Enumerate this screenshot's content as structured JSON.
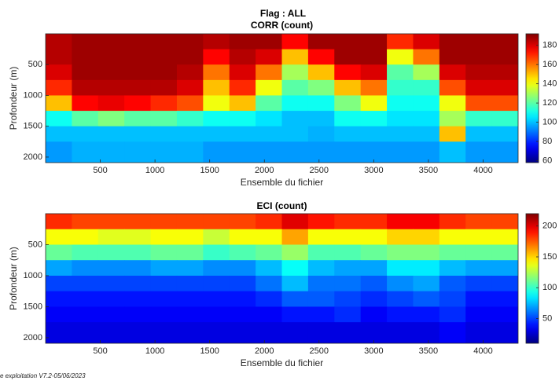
{
  "title": "Flag : ALL",
  "footer": "e exploitation V7.2-05/06/2023",
  "chart_data": [
    {
      "type": "heatmap",
      "title": "CORR (count)",
      "xlabel": "Ensemble du fichier",
      "ylabel": "Profondeur (m)",
      "xlim": [
        0,
        4320
      ],
      "ylim": [
        0,
        2090
      ],
      "y_reversed": true,
      "xticks": [
        500,
        1000,
        1500,
        2000,
        2500,
        3000,
        3500,
        4000
      ],
      "yticks": [
        500,
        1000,
        1500,
        2000
      ],
      "colormap": "jet",
      "clim": [
        58,
        192
      ],
      "cticks": [
        60,
        80,
        100,
        120,
        140,
        160,
        180
      ],
      "xbins": [
        0,
        240,
        480,
        720,
        960,
        1200,
        1440,
        1680,
        1920,
        2160,
        2400,
        2640,
        2880,
        3120,
        3360,
        3600,
        3840,
        4080,
        4320
      ],
      "ybins": [
        0,
        250,
        500,
        750,
        1000,
        1250,
        1500,
        1750,
        2090
      ],
      "z": [
        [
          185,
          188,
          188,
          188,
          188,
          188,
          185,
          188,
          188,
          175,
          188,
          188,
          188,
          170,
          180,
          188,
          188,
          188
        ],
        [
          185,
          188,
          188,
          188,
          188,
          188,
          175,
          185,
          180,
          150,
          175,
          188,
          188,
          140,
          160,
          188,
          188,
          188
        ],
        [
          180,
          188,
          188,
          188,
          188,
          185,
          160,
          180,
          160,
          130,
          150,
          175,
          180,
          120,
          130,
          180,
          185,
          185
        ],
        [
          170,
          185,
          185,
          185,
          185,
          180,
          150,
          170,
          140,
          120,
          125,
          150,
          160,
          115,
          115,
          165,
          180,
          180
        ],
        [
          150,
          175,
          178,
          175,
          170,
          165,
          140,
          150,
          120,
          110,
          110,
          125,
          140,
          110,
          110,
          140,
          165,
          165
        ],
        [
          110,
          120,
          125,
          120,
          120,
          115,
          110,
          110,
          105,
          100,
          100,
          110,
          110,
          105,
          105,
          130,
          115,
          115
        ],
        [
          100,
          100,
          100,
          100,
          100,
          100,
          100,
          100,
          100,
          100,
          98,
          100,
          100,
          100,
          100,
          150,
          100,
          100
        ],
        [
          95,
          98,
          98,
          98,
          98,
          98,
          95,
          95,
          95,
          95,
          95,
          95,
          95,
          95,
          95,
          100,
          95,
          95
        ]
      ]
    },
    {
      "type": "heatmap",
      "title": "ECI (count)",
      "xlabel": "Ensemble du fichier",
      "ylabel": "Profondeur (m)",
      "xlim": [
        0,
        4320
      ],
      "ylim": [
        0,
        2090
      ],
      "y_reversed": true,
      "xticks": [
        500,
        1000,
        1500,
        2000,
        2500,
        3000,
        3500,
        4000
      ],
      "yticks": [
        500,
        1000,
        1500,
        2000
      ],
      "colormap": "jet",
      "clim": [
        10,
        220
      ],
      "cticks": [
        50,
        100,
        150,
        200
      ],
      "xbins": [
        0,
        240,
        480,
        720,
        960,
        1200,
        1440,
        1680,
        1920,
        2160,
        2400,
        2640,
        2880,
        3120,
        3360,
        3600,
        3840,
        4080,
        4320
      ],
      "ybins": [
        0,
        250,
        500,
        750,
        1000,
        1250,
        1500,
        1750,
        2090
      ],
      "z": [
        [
          185,
          180,
          180,
          180,
          180,
          180,
          180,
          180,
          185,
          200,
          190,
          185,
          185,
          195,
          195,
          185,
          180,
          180
        ],
        [
          140,
          140,
          135,
          135,
          140,
          140,
          130,
          140,
          140,
          160,
          140,
          140,
          140,
          150,
          150,
          140,
          140,
          140
        ],
        [
          110,
          105,
          105,
          105,
          110,
          110,
          100,
          105,
          110,
          120,
          105,
          105,
          110,
          115,
          115,
          110,
          110,
          110
        ],
        [
          70,
          65,
          65,
          65,
          70,
          70,
          65,
          65,
          75,
          90,
          75,
          70,
          70,
          85,
          85,
          75,
          70,
          70
        ],
        [
          50,
          50,
          50,
          50,
          50,
          50,
          50,
          50,
          60,
          75,
          60,
          60,
          55,
          65,
          70,
          55,
          50,
          50
        ],
        [
          40,
          40,
          40,
          40,
          40,
          40,
          40,
          40,
          45,
          55,
          55,
          50,
          45,
          50,
          55,
          50,
          40,
          40
        ],
        [
          35,
          35,
          35,
          35,
          35,
          35,
          35,
          35,
          35,
          40,
          40,
          45,
          35,
          40,
          40,
          45,
          35,
          35
        ],
        [
          30,
          30,
          30,
          30,
          30,
          30,
          30,
          30,
          30,
          30,
          30,
          30,
          30,
          30,
          30,
          35,
          30,
          30
        ]
      ]
    }
  ]
}
